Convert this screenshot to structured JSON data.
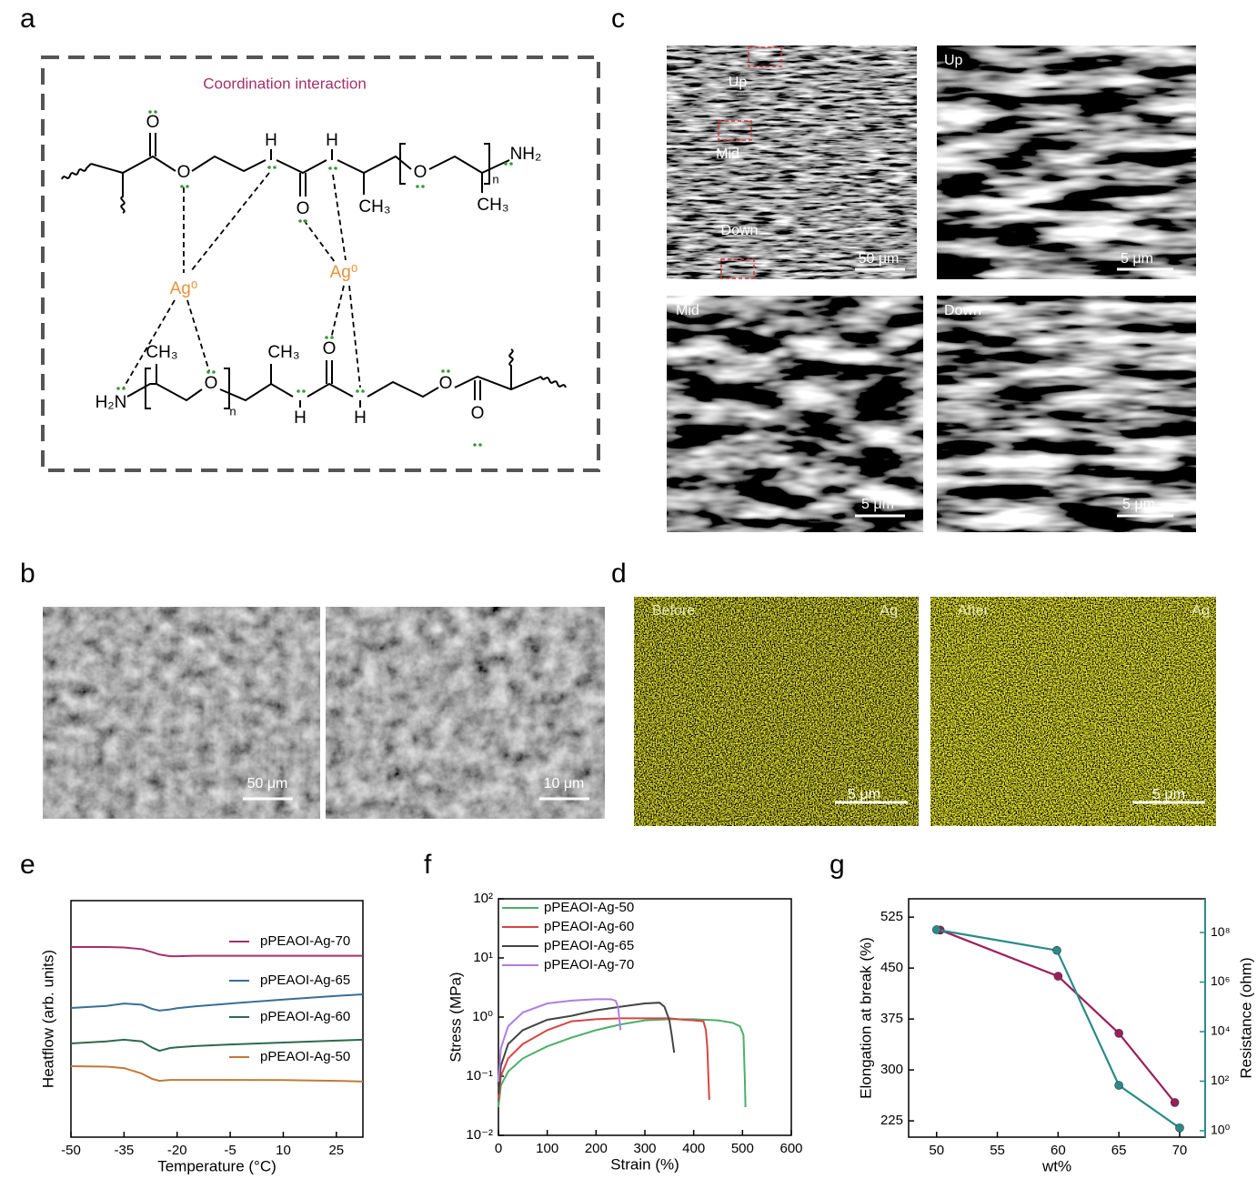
{
  "figure": {
    "a": {
      "label": "a",
      "title": "Coordination interaction",
      "atoms": [
        "O",
        "O",
        "H",
        "H",
        "O",
        "CH₃",
        "O",
        "CH₃",
        "n",
        "NH₂",
        "Ag⁰",
        "Ag⁰",
        "CH₃",
        "CH₃",
        "H₂N",
        "O",
        "n",
        "H",
        "H",
        "O",
        "O",
        "O"
      ]
    },
    "b": {
      "label": "b",
      "images": [
        {
          "scale_bar": "50 μm"
        },
        {
          "scale_bar": "10 μm"
        }
      ]
    },
    "c": {
      "label": "c",
      "images": [
        {
          "labels": [
            "Up",
            "Mid",
            "Down"
          ],
          "scale_bar": "50 μm"
        },
        {
          "labels": [
            "Up"
          ],
          "scale_bar": "5 μm"
        },
        {
          "labels": [
            "Mid"
          ],
          "scale_bar": "5 μm"
        },
        {
          "labels": [
            "Down"
          ],
          "scale_bar": "5 μm"
        }
      ]
    },
    "d": {
      "label": "d",
      "images": [
        {
          "labels": [
            "Before",
            "Ag"
          ],
          "scale_bar": "5 μm"
        },
        {
          "labels": [
            "After",
            "Ag"
          ],
          "scale_bar": "5 μm"
        }
      ]
    }
  },
  "chart_data": [
    {
      "panel_label": "e",
      "type": "line",
      "xlabel": "Temperature (°C)",
      "ylabel": "Heatflow (arb. units)",
      "x": [
        -50,
        -40,
        -35,
        -30,
        -27,
        -25,
        -22,
        -20,
        -15,
        -5,
        10,
        25,
        32.5
      ],
      "xlim": [
        -50,
        32.5
      ],
      "xticks": [
        -50,
        -35,
        -20,
        -5,
        10,
        25
      ],
      "ylim": [
        0,
        10
      ],
      "legend": "beside lines",
      "series": [
        {
          "name": "pPEAOI-Ag-70",
          "color": "#a3306c",
          "values": [
            8.04,
            8.04,
            8.02,
            7.95,
            7.82,
            7.72,
            7.65,
            7.65,
            7.67,
            7.67,
            7.67,
            7.67,
            7.67
          ]
        },
        {
          "name": "pPEAOI-Ag-65",
          "color": "#3a6e96",
          "values": [
            5.46,
            5.55,
            5.65,
            5.6,
            5.42,
            5.35,
            5.4,
            5.45,
            5.53,
            5.65,
            5.82,
            5.97,
            6.04
          ]
        },
        {
          "name": "pPEAOI-Ag-60",
          "color": "#2e6a4e",
          "values": [
            3.96,
            4.05,
            4.12,
            4.05,
            3.78,
            3.65,
            3.77,
            3.8,
            3.85,
            3.92,
            4.0,
            4.08,
            4.12
          ]
        },
        {
          "name": "pPEAOI-Ag-50",
          "color": "#c07a3a",
          "values": [
            3.0,
            2.98,
            2.92,
            2.69,
            2.46,
            2.38,
            2.42,
            2.42,
            2.42,
            2.42,
            2.41,
            2.38,
            2.35
          ]
        }
      ]
    },
    {
      "panel_label": "f",
      "type": "line",
      "xlabel": "Strain (%)",
      "ylabel": "Stress (MPa)",
      "log_y": true,
      "xlim": [
        0,
        600
      ],
      "xticks": [
        0,
        100,
        200,
        300,
        400,
        500,
        600
      ],
      "ylim": [
        0.01,
        100
      ],
      "yticks": [
        {
          "value": 0.01,
          "label": "10⁻²"
        },
        {
          "value": 0.1,
          "label": "10⁻¹"
        },
        {
          "value": 1,
          "label": "10⁰"
        },
        {
          "value": 10,
          "label": "10¹"
        },
        {
          "value": 100,
          "label": "10²"
        }
      ],
      "legend": "upper left",
      "series": [
        {
          "name": "pPEAOI-Ag-50",
          "color": "#4caf6a",
          "x": [
            0,
            5,
            20,
            50,
            100,
            150,
            200,
            250,
            300,
            350,
            400,
            450,
            480,
            495,
            502,
            505,
            506
          ],
          "values": [
            0.03,
            0.07,
            0.12,
            0.2,
            0.32,
            0.45,
            0.6,
            0.75,
            0.88,
            0.92,
            0.92,
            0.88,
            0.8,
            0.7,
            0.5,
            0.08,
            0.03
          ]
        },
        {
          "name": "pPEAOI-Ag-60",
          "color": "#d64541",
          "x": [
            0,
            5,
            20,
            50,
            100,
            150,
            200,
            250,
            300,
            350,
            380,
            400,
            420,
            425,
            428,
            430,
            432
          ],
          "values": [
            0.04,
            0.1,
            0.2,
            0.35,
            0.6,
            0.85,
            0.92,
            0.95,
            0.95,
            0.95,
            0.9,
            0.88,
            0.85,
            0.6,
            0.3,
            0.1,
            0.04
          ]
        },
        {
          "name": "pPEAOI-Ag-65",
          "color": "#444444",
          "x": [
            0,
            5,
            20,
            50,
            100,
            150,
            200,
            250,
            300,
            330,
            340,
            350,
            355,
            360
          ],
          "values": [
            0.05,
            0.15,
            0.35,
            0.6,
            0.9,
            1.05,
            1.3,
            1.5,
            1.7,
            1.75,
            1.5,
            0.9,
            0.5,
            0.25
          ]
        },
        {
          "name": "pPEAOI-Ag-70",
          "color": "#b07ee0",
          "x": [
            0,
            5,
            20,
            50,
            100,
            150,
            200,
            230,
            240,
            245,
            248,
            250
          ],
          "values": [
            0.08,
            0.3,
            0.7,
            1.2,
            1.7,
            1.9,
            2.0,
            2.0,
            1.9,
            1.5,
            0.9,
            0.6
          ]
        }
      ]
    },
    {
      "panel_label": "g",
      "type": "line",
      "markers": true,
      "xlabel": "wt%",
      "ylabel": "Elongation at break (%)",
      "y2label": "Resistance (ohm)",
      "log_y2": true,
      "xlim": [
        47.7,
        72.1
      ],
      "xticks": [
        50,
        55,
        60,
        65,
        70
      ],
      "ylim": [
        201,
        552
      ],
      "yticks": [
        225,
        300,
        375,
        450,
        525
      ],
      "y2lim": [
        0.55,
        2300000000
      ],
      "y2ticks": [
        {
          "value": 1,
          "label": "10⁰"
        },
        {
          "value": 100,
          "label": "10²"
        },
        {
          "value": 10000,
          "label": "10⁴"
        },
        {
          "value": 1000000,
          "label": "10⁶"
        },
        {
          "value": 100000000,
          "label": "10⁸"
        }
      ],
      "series": [
        {
          "color": "#9c1f5a",
          "x": [
            50.3,
            60,
            65,
            69.6
          ],
          "values": [
            506,
            438,
            354,
            252
          ]
        },
        {
          "color": "#2a8a8a",
          "axis": "y2",
          "x": [
            50,
            59.9,
            65,
            70
          ],
          "values": [
            130000000,
            19000000,
            68,
            1.3
          ]
        }
      ]
    }
  ]
}
